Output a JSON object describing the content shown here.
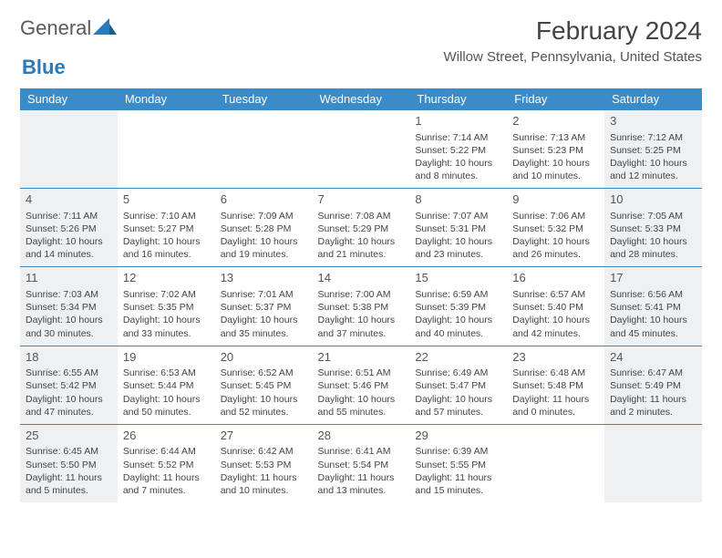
{
  "logo": {
    "part1": "General",
    "part2": "Blue"
  },
  "title": "February 2024",
  "location": "Willow Street, Pennsylvania, United States",
  "colors": {
    "header_bg": "#3b8bc9",
    "weekend_bg": "#eef0f2",
    "border": "#3b8bc9",
    "text": "#444"
  },
  "day_headers": [
    "Sunday",
    "Monday",
    "Tuesday",
    "Wednesday",
    "Thursday",
    "Friday",
    "Saturday"
  ],
  "weeks": [
    [
      null,
      null,
      null,
      null,
      {
        "n": "1",
        "sr": "7:14 AM",
        "ss": "5:22 PM",
        "d": "10 hours and 8 minutes."
      },
      {
        "n": "2",
        "sr": "7:13 AM",
        "ss": "5:23 PM",
        "d": "10 hours and 10 minutes."
      },
      {
        "n": "3",
        "sr": "7:12 AM",
        "ss": "5:25 PM",
        "d": "10 hours and 12 minutes."
      }
    ],
    [
      {
        "n": "4",
        "sr": "7:11 AM",
        "ss": "5:26 PM",
        "d": "10 hours and 14 minutes."
      },
      {
        "n": "5",
        "sr": "7:10 AM",
        "ss": "5:27 PM",
        "d": "10 hours and 16 minutes."
      },
      {
        "n": "6",
        "sr": "7:09 AM",
        "ss": "5:28 PM",
        "d": "10 hours and 19 minutes."
      },
      {
        "n": "7",
        "sr": "7:08 AM",
        "ss": "5:29 PM",
        "d": "10 hours and 21 minutes."
      },
      {
        "n": "8",
        "sr": "7:07 AM",
        "ss": "5:31 PM",
        "d": "10 hours and 23 minutes."
      },
      {
        "n": "9",
        "sr": "7:06 AM",
        "ss": "5:32 PM",
        "d": "10 hours and 26 minutes."
      },
      {
        "n": "10",
        "sr": "7:05 AM",
        "ss": "5:33 PM",
        "d": "10 hours and 28 minutes."
      }
    ],
    [
      {
        "n": "11",
        "sr": "7:03 AM",
        "ss": "5:34 PM",
        "d": "10 hours and 30 minutes."
      },
      {
        "n": "12",
        "sr": "7:02 AM",
        "ss": "5:35 PM",
        "d": "10 hours and 33 minutes."
      },
      {
        "n": "13",
        "sr": "7:01 AM",
        "ss": "5:37 PM",
        "d": "10 hours and 35 minutes."
      },
      {
        "n": "14",
        "sr": "7:00 AM",
        "ss": "5:38 PM",
        "d": "10 hours and 37 minutes."
      },
      {
        "n": "15",
        "sr": "6:59 AM",
        "ss": "5:39 PM",
        "d": "10 hours and 40 minutes."
      },
      {
        "n": "16",
        "sr": "6:57 AM",
        "ss": "5:40 PM",
        "d": "10 hours and 42 minutes."
      },
      {
        "n": "17",
        "sr": "6:56 AM",
        "ss": "5:41 PM",
        "d": "10 hours and 45 minutes."
      }
    ],
    [
      {
        "n": "18",
        "sr": "6:55 AM",
        "ss": "5:42 PM",
        "d": "10 hours and 47 minutes."
      },
      {
        "n": "19",
        "sr": "6:53 AM",
        "ss": "5:44 PM",
        "d": "10 hours and 50 minutes."
      },
      {
        "n": "20",
        "sr": "6:52 AM",
        "ss": "5:45 PM",
        "d": "10 hours and 52 minutes."
      },
      {
        "n": "21",
        "sr": "6:51 AM",
        "ss": "5:46 PM",
        "d": "10 hours and 55 minutes."
      },
      {
        "n": "22",
        "sr": "6:49 AM",
        "ss": "5:47 PM",
        "d": "10 hours and 57 minutes."
      },
      {
        "n": "23",
        "sr": "6:48 AM",
        "ss": "5:48 PM",
        "d": "11 hours and 0 minutes."
      },
      {
        "n": "24",
        "sr": "6:47 AM",
        "ss": "5:49 PM",
        "d": "11 hours and 2 minutes."
      }
    ],
    [
      {
        "n": "25",
        "sr": "6:45 AM",
        "ss": "5:50 PM",
        "d": "11 hours and 5 minutes."
      },
      {
        "n": "26",
        "sr": "6:44 AM",
        "ss": "5:52 PM",
        "d": "11 hours and 7 minutes."
      },
      {
        "n": "27",
        "sr": "6:42 AM",
        "ss": "5:53 PM",
        "d": "11 hours and 10 minutes."
      },
      {
        "n": "28",
        "sr": "6:41 AM",
        "ss": "5:54 PM",
        "d": "11 hours and 13 minutes."
      },
      {
        "n": "29",
        "sr": "6:39 AM",
        "ss": "5:55 PM",
        "d": "11 hours and 15 minutes."
      },
      null,
      null
    ]
  ],
  "labels": {
    "sunrise": "Sunrise: ",
    "sunset": "Sunset: ",
    "daylight": "Daylight: "
  }
}
